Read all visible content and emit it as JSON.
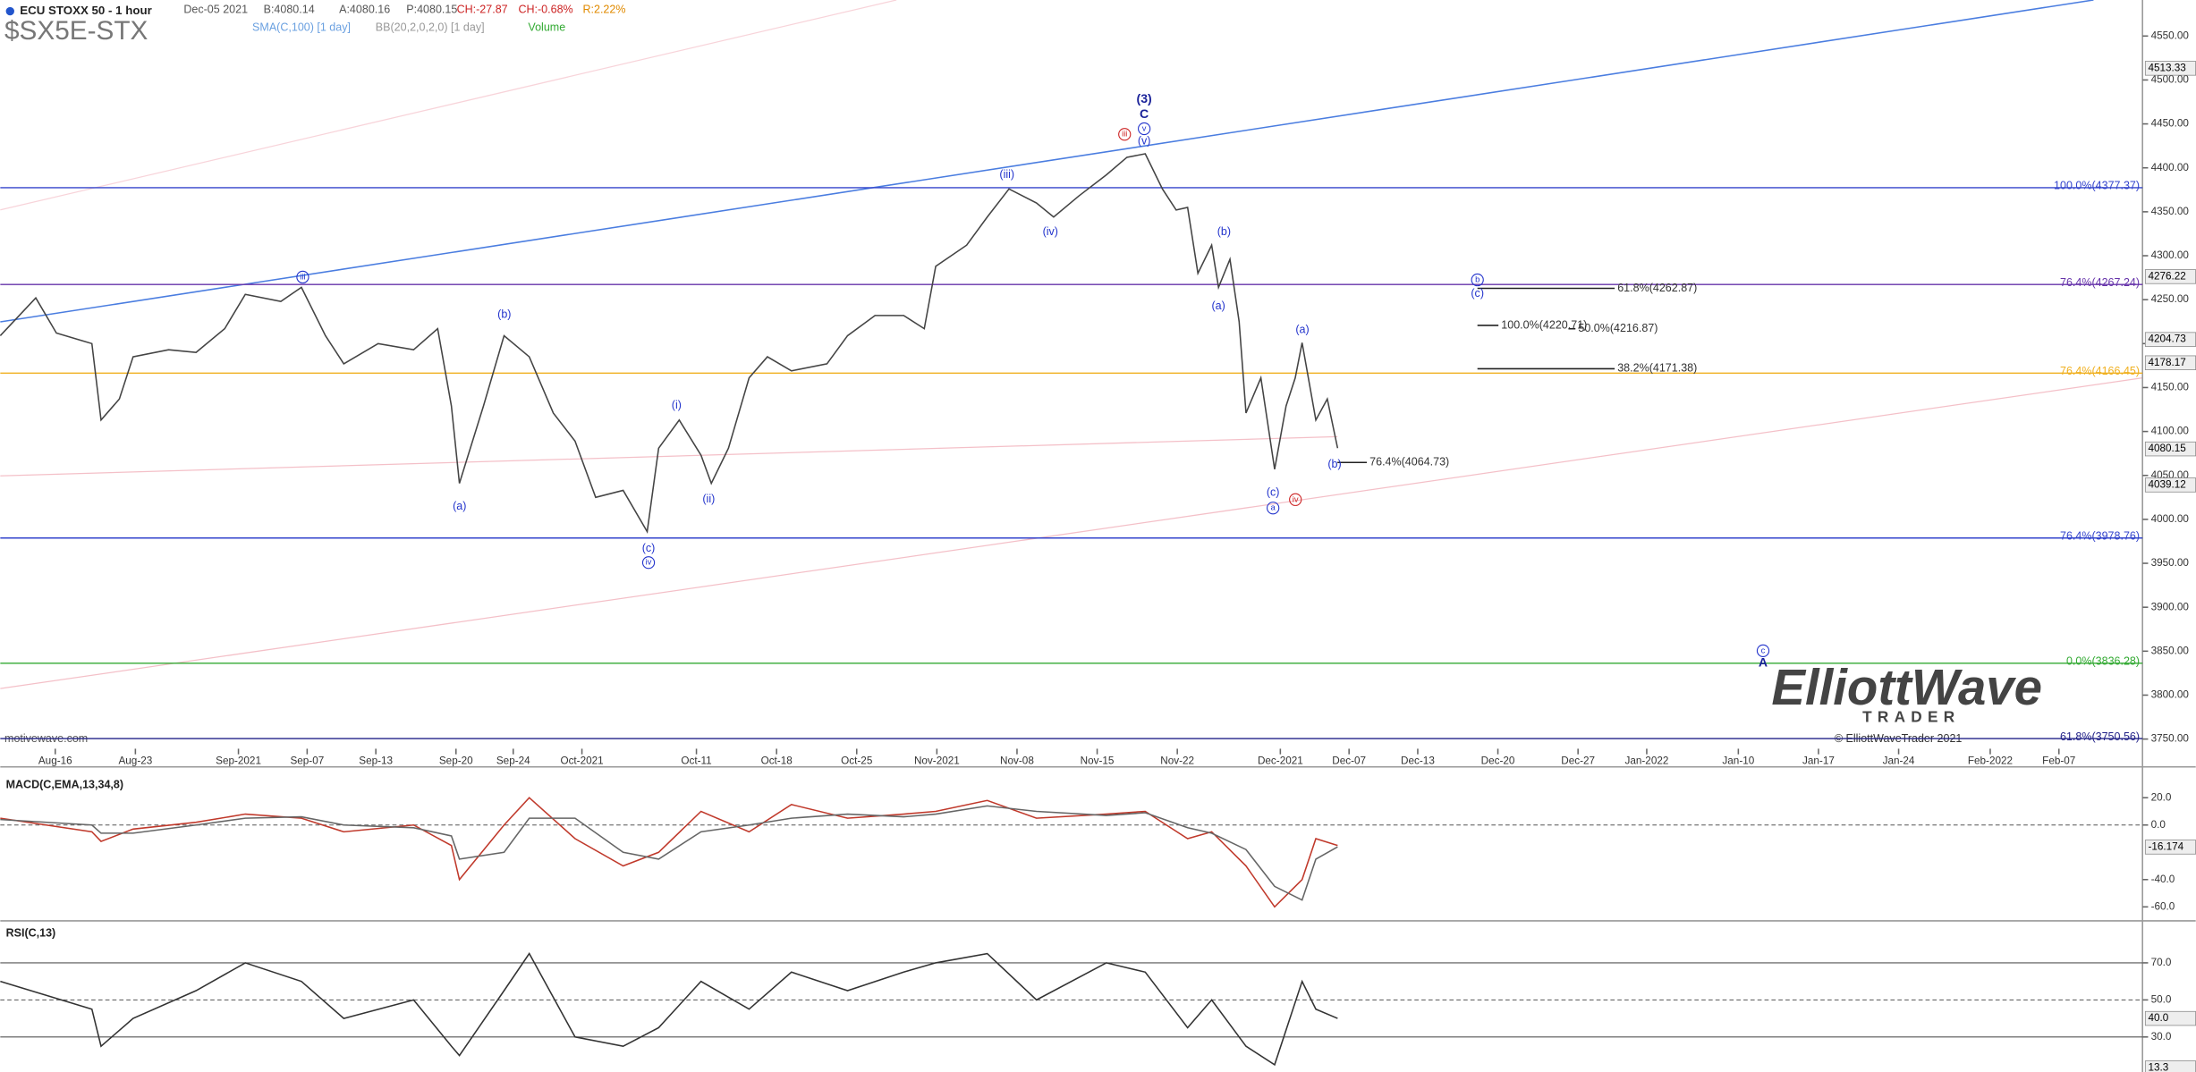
{
  "header": {
    "title": "ECU STOXX 50 - 1 hour",
    "date": "Dec-05 2021",
    "bid": "B:4080.14",
    "ask": "A:4080.16",
    "price": "P:4080.15",
    "change": "CH:-27.87",
    "change_pct": "CH:-0.68%",
    "range": "R:2.22%",
    "ticker": "$SX5E-STX",
    "indicators": [
      "SMA(C,100) [1 day]",
      "BB(20,2,0,2,0) [1 day]",
      "Volume"
    ],
    "source": "motivewave.com"
  },
  "logo": {
    "name": "ElliottWave",
    "sub": "TRADER",
    "copyright": "© ElliottWaveTrader 2021"
  },
  "wave_labels": [
    "(3)",
    "C",
    "v",
    "(v)",
    "iii",
    "(iii)",
    "(iv)",
    "(b)",
    "(a)",
    "(a)",
    "(b)",
    "(c)",
    "a",
    "iv",
    "(a)",
    "(b)",
    "iii",
    "(i)",
    "(ii)",
    "(c)",
    "iv",
    "b",
    "(c)",
    "c",
    "A"
  ],
  "chart_data": [
    {
      "type": "line",
      "color": "#444444",
      "x": [
        -4.8,
        -1.7,
        0.1,
        3.2,
        4.0,
        5.6,
        6.8,
        9.9,
        12.3,
        14.8,
        16.6,
        19.7,
        21.5,
        23.6,
        25.2,
        28.2,
        31.3,
        33.4,
        34.6,
        35.3,
        37.4,
        39.2,
        41.4,
        43.5,
        45.4,
        47.2,
        49.6,
        51.7,
        52.7,
        54.5,
        56.4,
        57.3,
        58.8,
        60.6,
        62.2,
        64.3,
        67.4,
        69.2,
        71.6,
        74.1,
        75.9,
        76.9,
        79.6,
        81.4,
        83.3,
        85.7,
        87.2,
        89.4,
        91.8,
        93.6,
        95.2,
        96.7,
        97.9,
        98.9,
        99.8,
        101.0,
        101.6,
        102.6,
        103.4,
        104.0,
        105.3,
        106.5,
        107.5,
        108.3,
        108.9,
        110.1,
        111.1,
        112.0
      ],
      "values": [
        4209,
        4252,
        4212,
        4200,
        4113,
        4137,
        4185,
        4193,
        4190,
        4217,
        4256,
        4248,
        4264,
        4209,
        4177,
        4200,
        4193,
        4217,
        4129,
        4041,
        4129,
        4209,
        4185,
        4121,
        4089,
        4025,
        4033,
        3986,
        4081,
        4113,
        4073,
        4041,
        4081,
        4161,
        4185,
        4169,
        4177,
        4209,
        4232,
        4232,
        4217,
        4288,
        4312,
        4344,
        4376,
        4360,
        4344,
        4368,
        4392,
        4412,
        4416,
        4376,
        4352,
        4355,
        4280,
        4312,
        4264,
        4296,
        4225,
        4121,
        4161,
        4057,
        4129,
        4161,
        4201,
        4113,
        4137,
        4081
      ],
      "xlim": [
        -4.8,
        182.3
      ],
      "xticks": [
        {
          "value": 0,
          "label": "Aug-16"
        },
        {
          "value": 7,
          "label": "Aug-23"
        },
        {
          "value": 16,
          "label": "Sep-2021"
        },
        {
          "value": 22,
          "label": "Sep-07"
        },
        {
          "value": 28,
          "label": "Sep-13"
        },
        {
          "value": 35,
          "label": "Sep-20"
        },
        {
          "value": 40,
          "label": "Sep-24"
        },
        {
          "value": 46,
          "label": "Oct-2021"
        },
        {
          "value": 56,
          "label": "Oct-11"
        },
        {
          "value": 63,
          "label": "Oct-18"
        },
        {
          "value": 70,
          "label": "Oct-25"
        },
        {
          "value": 77,
          "label": "Nov-2021"
        },
        {
          "value": 84,
          "label": "Nov-08"
        },
        {
          "value": 91,
          "label": "Nov-15"
        },
        {
          "value": 98,
          "label": "Nov-22"
        },
        {
          "value": 107,
          "label": "Dec-2021"
        },
        {
          "value": 113,
          "label": "Dec-07"
        },
        {
          "value": 119,
          "label": "Dec-13"
        },
        {
          "value": 126,
          "label": "Dec-20"
        },
        {
          "value": 133,
          "label": "Dec-27"
        },
        {
          "value": 139,
          "label": "Jan-2022"
        },
        {
          "value": 147,
          "label": "Jan-10"
        },
        {
          "value": 154,
          "label": "Jan-17"
        },
        {
          "value": 161,
          "label": "Jan-24"
        },
        {
          "value": 169,
          "label": "Feb-2022"
        },
        {
          "value": 175,
          "label": "Feb-07"
        }
      ],
      "ylim": [
        3739,
        4591
      ],
      "yticks": [
        {
          "value": 3750,
          "label": "3750.00"
        },
        {
          "value": 3800,
          "label": "3800.00"
        },
        {
          "value": 3850,
          "label": "3850.00"
        },
        {
          "value": 3900,
          "label": "3900.00"
        },
        {
          "value": 3950,
          "label": "3950.00"
        },
        {
          "value": 4000,
          "label": "4000.00"
        },
        {
          "value": 4050,
          "label": "4050.00"
        },
        {
          "value": 4100,
          "label": "4100.00"
        },
        {
          "value": 4150,
          "label": "4150.00"
        },
        {
          "value": 4200,
          "label": "4200.00"
        },
        {
          "value": 4250,
          "label": "4250.00"
        },
        {
          "value": 4300,
          "label": "4300.00"
        },
        {
          "value": 4350,
          "label": "4350.00"
        },
        {
          "value": 4400,
          "label": "4400.00"
        },
        {
          "value": 4450,
          "label": "4450.00"
        },
        {
          "value": 4500,
          "label": "4500.00"
        },
        {
          "value": 4550,
          "label": "4550.00"
        }
      ],
      "hlines": [
        {
          "value": 4377.37,
          "label": "100.0%(4377.37)",
          "color": "#3344cc"
        },
        {
          "value": 4267.24,
          "label": "76.4%(4267.24)",
          "color": "#6633aa"
        },
        {
          "value": 4166.45,
          "label": "76.4%(4166.45)",
          "color": "#f0b020"
        },
        {
          "value": 3978.76,
          "label": "76.4%(3978.76)",
          "color": "#3344cc"
        },
        {
          "value": 3836.28,
          "label": "0.0%(3836.28)",
          "color": "#33aa33"
        },
        {
          "value": 3750.56,
          "label": "61.8%(3750.56)",
          "color": "#222288"
        }
      ],
      "fib_labels": [
        {
          "value": 4262.87,
          "label": "61.8%(4262.87)"
        },
        {
          "value": 4216.87,
          "label": "50.0%(4216.87)"
        },
        {
          "value": 4171.38,
          "label": "38.2%(4171.38)"
        },
        {
          "value": 4220.71,
          "label": "100.0%(4220.71)"
        },
        {
          "value": 4064.73,
          "label": "76.4%(4064.73)"
        }
      ],
      "price_tags": [
        4513.33,
        4276.22,
        4204.73,
        4178.17,
        4080.15,
        4039.12
      ]
    },
    {
      "type": "line",
      "title": "MACD(C,EMA,13,34,8)",
      "x": [
        -4.8,
        3.2,
        4.0,
        6.8,
        12.3,
        16.6,
        21.5,
        25.2,
        31.3,
        34.6,
        35.3,
        39.2,
        41.4,
        45.4,
        49.6,
        52.7,
        56.4,
        60.6,
        64.3,
        69.2,
        74.1,
        76.9,
        81.4,
        85.7,
        91.8,
        95.2,
        98.9,
        101.0,
        104.0,
        106.5,
        108.9,
        110.1,
        112.0
      ],
      "series": [
        {
          "color": "#c0392b",
          "values": [
            5,
            -5,
            -12,
            -3,
            2,
            8,
            5,
            -5,
            0,
            -15,
            -40,
            0,
            20,
            -10,
            -30,
            -20,
            10,
            -5,
            15,
            5,
            8,
            10,
            18,
            5,
            8,
            10,
            -10,
            -5,
            -30,
            -60,
            -40,
            -10,
            -15
          ]
        },
        {
          "color": "#666666",
          "values": [
            4,
            0,
            -6,
            -6,
            0,
            5,
            6,
            0,
            -2,
            -8,
            -25,
            -20,
            5,
            5,
            -20,
            -25,
            -5,
            0,
            5,
            8,
            6,
            8,
            14,
            10,
            7,
            9,
            -2,
            -6,
            -18,
            -45,
            -55,
            -25,
            -16
          ]
        }
      ],
      "xlim": [
        -4.8,
        182.3
      ],
      "ylim": [
        -68.2,
        35.4
      ],
      "yticks": [
        {
          "value": 20,
          "label": "20.0"
        },
        {
          "value": 0,
          "label": "0.0"
        },
        {
          "value": -40,
          "label": "-40.0"
        },
        {
          "value": -60,
          "label": "-60.0"
        }
      ],
      "ref_lines": [
        0
      ],
      "price_tags": [
        -16.174
      ]
    },
    {
      "type": "line",
      "title": "RSI(C,13)",
      "x": [
        -4.8,
        3.2,
        4.0,
        6.8,
        12.3,
        16.6,
        21.5,
        25.2,
        31.3,
        34.6,
        35.3,
        39.2,
        41.4,
        45.4,
        49.6,
        52.7,
        56.4,
        60.6,
        64.3,
        69.2,
        74.1,
        76.9,
        81.4,
        85.7,
        91.8,
        95.2,
        98.9,
        101.0,
        104.0,
        106.5,
        108.9,
        110.1,
        112.0
      ],
      "series": [
        {
          "color": "#333333",
          "values": [
            60,
            45,
            25,
            40,
            55,
            70,
            60,
            40,
            50,
            25,
            20,
            55,
            75,
            30,
            25,
            35,
            60,
            45,
            65,
            55,
            65,
            70,
            75,
            50,
            70,
            65,
            35,
            50,
            25,
            15,
            60,
            45,
            40
          ]
        }
      ],
      "xlim": [
        -4.8,
        182.3
      ],
      "ylim": [
        12.6,
        90.4
      ],
      "yticks": [
        {
          "value": 70,
          "label": "70.0"
        },
        {
          "value": 50,
          "label": "50.0"
        },
        {
          "value": 30,
          "label": "30.0"
        }
      ],
      "ref_lines": [
        70,
        50,
        30
      ],
      "price_tags": [
        {
          "value": 40,
          "label": "40.0"
        },
        13.3
      ]
    }
  ]
}
